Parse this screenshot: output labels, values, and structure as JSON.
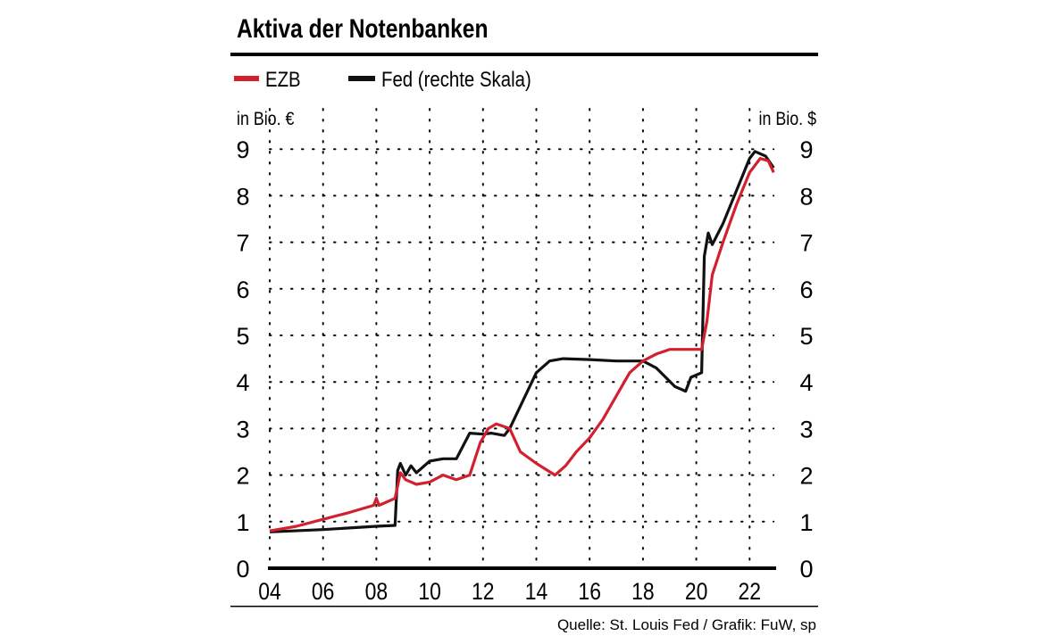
{
  "chart_data": {
    "type": "line",
    "title": "Aktiva der Notenbanken",
    "ylabel_left": "in Bio. €",
    "ylabel_right": "in Bio. $",
    "ylim": [
      0,
      9
    ],
    "xlim": [
      2004,
      2022.9
    ],
    "y_ticks": [
      "0",
      "1",
      "2",
      "3",
      "4",
      "5",
      "6",
      "7",
      "8",
      "9"
    ],
    "x_ticks": [
      {
        "year": 2004,
        "label": "04"
      },
      {
        "year": 2006,
        "label": "06"
      },
      {
        "year": 2008,
        "label": "08"
      },
      {
        "year": 2010,
        "label": "10"
      },
      {
        "year": 2012,
        "label": "12"
      },
      {
        "year": 2014,
        "label": "14"
      },
      {
        "year": 2016,
        "label": "16"
      },
      {
        "year": 2018,
        "label": "18"
      },
      {
        "year": 2020,
        "label": "20"
      },
      {
        "year": 2022,
        "label": "22"
      }
    ],
    "grid": true,
    "legend_position": "top-left",
    "series": [
      {
        "name": "EZB",
        "color": "#d3202f",
        "points": [
          [
            2004,
            0.8
          ],
          [
            2005,
            0.9
          ],
          [
            2006,
            1.05
          ],
          [
            2007,
            1.2
          ],
          [
            2007.9,
            1.35
          ],
          [
            2008.0,
            1.5
          ],
          [
            2008.1,
            1.35
          ],
          [
            2008.7,
            1.5
          ],
          [
            2008.9,
            2.05
          ],
          [
            2009.1,
            1.9
          ],
          [
            2009.5,
            1.8
          ],
          [
            2010,
            1.85
          ],
          [
            2010.5,
            2.0
          ],
          [
            2011,
            1.9
          ],
          [
            2011.5,
            2.0
          ],
          [
            2011.9,
            2.7
          ],
          [
            2012.2,
            3.0
          ],
          [
            2012.5,
            3.1
          ],
          [
            2013,
            3.0
          ],
          [
            2013.4,
            2.5
          ],
          [
            2014,
            2.25
          ],
          [
            2014.7,
            2.0
          ],
          [
            2015.1,
            2.2
          ],
          [
            2015.5,
            2.5
          ],
          [
            2016,
            2.8
          ],
          [
            2016.5,
            3.2
          ],
          [
            2017,
            3.7
          ],
          [
            2017.5,
            4.2
          ],
          [
            2018,
            4.45
          ],
          [
            2018.5,
            4.6
          ],
          [
            2019,
            4.7
          ],
          [
            2020.2,
            4.7
          ],
          [
            2020.4,
            5.3
          ],
          [
            2020.6,
            6.3
          ],
          [
            2021,
            7.0
          ],
          [
            2021.5,
            7.8
          ],
          [
            2022,
            8.5
          ],
          [
            2022.4,
            8.8
          ],
          [
            2022.7,
            8.75
          ],
          [
            2022.9,
            8.5
          ]
        ]
      },
      {
        "name": "Fed (rechte Skala)",
        "color": "#111111",
        "points": [
          [
            2004,
            0.78
          ],
          [
            2006,
            0.83
          ],
          [
            2008,
            0.9
          ],
          [
            2008.7,
            0.92
          ],
          [
            2008.8,
            2.1
          ],
          [
            2008.9,
            2.25
          ],
          [
            2009.1,
            2.0
          ],
          [
            2009.3,
            2.2
          ],
          [
            2009.5,
            2.05
          ],
          [
            2010,
            2.3
          ],
          [
            2010.5,
            2.35
          ],
          [
            2011,
            2.35
          ],
          [
            2011.5,
            2.9
          ],
          [
            2012,
            2.88
          ],
          [
            2012.3,
            2.9
          ],
          [
            2012.8,
            2.85
          ],
          [
            2013,
            3.0
          ],
          [
            2013.5,
            3.6
          ],
          [
            2014,
            4.2
          ],
          [
            2014.5,
            4.45
          ],
          [
            2015,
            4.5
          ],
          [
            2016,
            4.48
          ],
          [
            2017,
            4.45
          ],
          [
            2018,
            4.45
          ],
          [
            2018.5,
            4.3
          ],
          [
            2019.2,
            3.9
          ],
          [
            2019.6,
            3.8
          ],
          [
            2019.8,
            4.1
          ],
          [
            2020.2,
            4.2
          ],
          [
            2020.3,
            6.7
          ],
          [
            2020.45,
            7.2
          ],
          [
            2020.6,
            6.95
          ],
          [
            2021,
            7.4
          ],
          [
            2021.5,
            8.1
          ],
          [
            2022,
            8.8
          ],
          [
            2022.2,
            8.95
          ],
          [
            2022.6,
            8.85
          ],
          [
            2022.9,
            8.6
          ]
        ]
      }
    ],
    "source": "Quelle: St. Louis Fed / Grafik: FuW, sp"
  }
}
